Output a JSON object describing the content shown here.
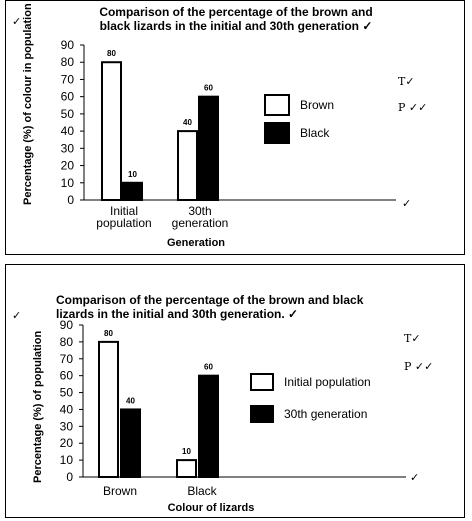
{
  "panels": [
    {
      "title": "Comparison of the percentage of the brown and black lizards in the initial and 30th generation",
      "title_mark": "✓",
      "marks": {
        "t": "T✓",
        "p": "P ✓✓",
        "corner": "✓",
        "axis": "✓"
      }
    },
    {
      "title": "Comparison of the percentage of the brown and black lizards in the initial and 30th generation.",
      "title_mark": "✓",
      "marks": {
        "t": "T✓",
        "p": "P ✓✓",
        "corner": "✓",
        "axis": "✓"
      }
    }
  ],
  "chart_data": [
    {
      "type": "bar",
      "title": "Comparison of the percentage of the brown and black lizards in the initial and 30th generation",
      "categories": [
        "Initial population",
        "30th generation"
      ],
      "series": [
        {
          "name": "Brown",
          "values": [
            80,
            40
          ],
          "color": "#ffffff"
        },
        {
          "name": "Black",
          "values": [
            10,
            60
          ],
          "color": "#000000"
        }
      ],
      "xlabel": "Generation",
      "ylabel": "Percentage (%) of colour in population",
      "ylim": [
        0,
        90
      ],
      "yticks": [
        0,
        10,
        20,
        30,
        40,
        50,
        60,
        70,
        80,
        90
      ],
      "grid": false,
      "legend": "right"
    },
    {
      "type": "bar",
      "title": "Comparison of the percentage of the brown and black lizards in the initial and 30th generation.",
      "categories": [
        "Brown",
        "Black"
      ],
      "series": [
        {
          "name": "Initial population",
          "values": [
            80,
            10
          ],
          "color": "#ffffff"
        },
        {
          "name": "30th generation",
          "values": [
            40,
            60
          ],
          "color": "#000000"
        }
      ],
      "xlabel": "Colour of lizards",
      "ylabel": "Percentage (%) of population",
      "ylim": [
        0,
        90
      ],
      "yticks": [
        0,
        10,
        20,
        30,
        40,
        50,
        60,
        70,
        80,
        90
      ],
      "grid": false,
      "legend": "right"
    }
  ]
}
